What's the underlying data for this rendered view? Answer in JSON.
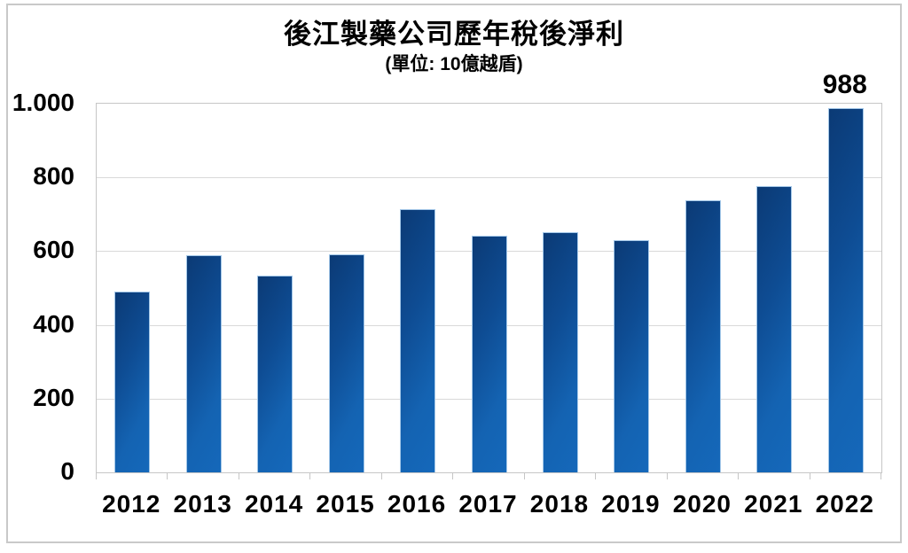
{
  "chart": {
    "title": "後江製藥公司歷年稅後淨利",
    "subtitle": "(單位: 10億越盾)",
    "colors": {
      "bar_dark": "#0b3a75",
      "bar_light": "#1568ba",
      "bar_border": "#a3c7e8",
      "gridline": "#d9d9d9",
      "axis": "#c6c6c6",
      "frame": "#c9c9c9",
      "text": "#000000",
      "background": "#ffffff"
    }
  },
  "chart_data": {
    "type": "bar",
    "title": "後江製藥公司歷年稅後淨利",
    "subtitle": "(單位: 10億越盾)",
    "categories": [
      "2012",
      "2013",
      "2014",
      "2015",
      "2016",
      "2017",
      "2018",
      "2019",
      "2020",
      "2021",
      "2022"
    ],
    "values": [
      491,
      590,
      534,
      591,
      713,
      642,
      651,
      631,
      739,
      776,
      988
    ],
    "xlabel": "",
    "ylabel": "",
    "ylim": [
      0,
      1000
    ],
    "yticks": [
      0,
      200,
      400,
      600,
      800,
      1000
    ],
    "ytick_labels": [
      "0",
      "200",
      "400",
      "600",
      "800",
      "1.000"
    ],
    "grid": true,
    "legend": false,
    "data_labels": [
      {
        "category": "2022",
        "text": "988"
      }
    ]
  }
}
